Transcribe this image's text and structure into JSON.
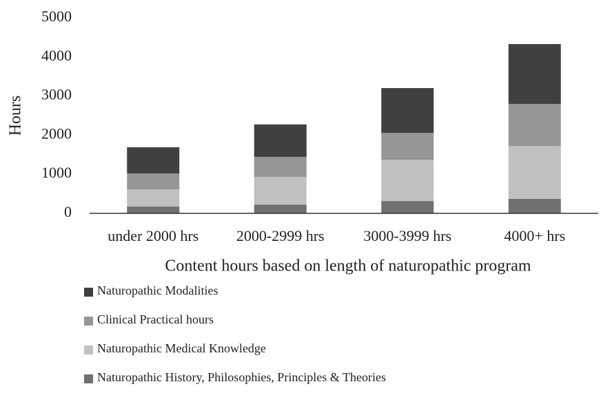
{
  "chart_data": {
    "type": "stacked_bar",
    "xlabel": "Content hours based on length of naturopathic program",
    "ylabel": "Hours",
    "categories": [
      "under 2000 hrs",
      "2000-2999 hrs",
      "3000-3999 hrs",
      "4000+ hrs"
    ],
    "series": [
      {
        "name": "Naturopathic History, Philosophies, Principles & Theories",
        "color": "#707070",
        "values": [
          175,
          225,
          315,
          370
        ]
      },
      {
        "name": "Naturopathic Medical Knowledge",
        "color": "#c0c0c0",
        "values": [
          440,
          705,
          1055,
          1355
        ]
      },
      {
        "name": "Clinical Practical hours",
        "color": "#969696",
        "values": [
          405,
          515,
          690,
          1075
        ]
      },
      {
        "name": "Naturopathic Modalities",
        "color": "#404040",
        "values": [
          670,
          830,
          1145,
          1530
        ]
      }
    ],
    "ylim": [
      0,
      5000
    ],
    "yticks": [
      0,
      1000,
      2000,
      3000,
      4000,
      5000
    ],
    "grid": false
  }
}
